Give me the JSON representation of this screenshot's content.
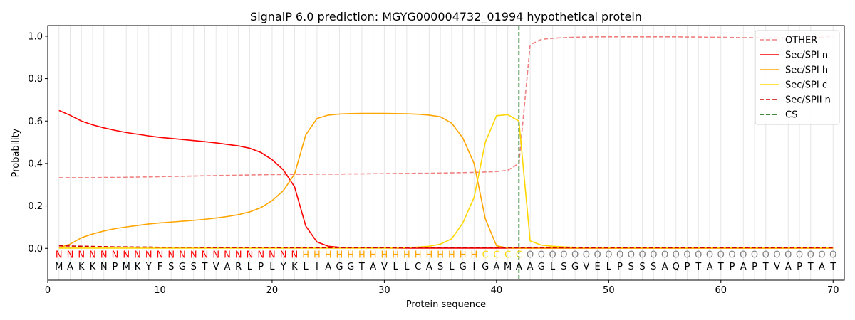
{
  "chart_data": {
    "type": "line",
    "title": "SignalP 6.0 prediction: MGYG000004732_01994 hypothetical protein",
    "xlabel": "Protein sequence",
    "ylabel": "Probability",
    "xlim": [
      0,
      71
    ],
    "ylim": [
      -0.15,
      1.05
    ],
    "xticks": [
      0,
      10,
      20,
      30,
      40,
      50,
      60,
      70
    ],
    "yticks": [
      "0.0",
      "0.2",
      "0.4",
      "0.6",
      "0.8",
      "1.0"
    ],
    "yticks_values": [
      0.0,
      0.2,
      0.4,
      0.6,
      0.8,
      1.0
    ],
    "grid": "vertical lines at each residue",
    "legend_position": "top-right",
    "sequence": [
      "M",
      "A",
      "K",
      "K",
      "N",
      "P",
      "M",
      "K",
      "Y",
      "F",
      "S",
      "G",
      "S",
      "T",
      "V",
      "A",
      "R",
      "L",
      "P",
      "L",
      "Y",
      "K",
      "L",
      "I",
      "A",
      "G",
      "G",
      "T",
      "A",
      "V",
      "L",
      "L",
      "C",
      "A",
      "S",
      "L",
      "G",
      "I",
      "G",
      "A",
      "M",
      "A",
      "A",
      "G",
      "L",
      "S",
      "G",
      "V",
      "E",
      "L",
      "P",
      "S",
      "S",
      "S",
      "A",
      "Q",
      "P",
      "T",
      "A",
      "T",
      "P",
      "A",
      "P",
      "T",
      "V",
      "A",
      "P",
      "T",
      "A",
      "T"
    ],
    "labels": [
      "N",
      "N",
      "N",
      "N",
      "N",
      "N",
      "N",
      "N",
      "N",
      "N",
      "N",
      "N",
      "N",
      "N",
      "N",
      "N",
      "N",
      "N",
      "N",
      "N",
      "N",
      "N",
      "H",
      "H",
      "H",
      "H",
      "H",
      "H",
      "H",
      "H",
      "H",
      "H",
      "H",
      "H",
      "H",
      "H",
      "H",
      "H",
      "C",
      "C",
      "C",
      "C",
      "O",
      "O",
      "O",
      "O",
      "O",
      "O",
      "O",
      "O",
      "O",
      "O",
      "O",
      "O",
      "O",
      "O",
      "O",
      "O",
      "O",
      "O",
      "O",
      "O",
      "O",
      "O",
      "O",
      "O",
      "O",
      "O",
      "O",
      "O"
    ],
    "label_colors": {
      "N": "#ff0000",
      "H": "#ffa500",
      "C": "#ffd700",
      "O": "#808080"
    },
    "cs_position": 42,
    "series": [
      {
        "name": "OTHER",
        "color": "#f08080",
        "dash": "dashed",
        "values": [
          0.333,
          0.333,
          0.333,
          0.333,
          0.334,
          0.334,
          0.335,
          0.336,
          0.337,
          0.338,
          0.339,
          0.34,
          0.341,
          0.342,
          0.343,
          0.344,
          0.345,
          0.346,
          0.347,
          0.348,
          0.348,
          0.349,
          0.349,
          0.35,
          0.35,
          0.35,
          0.351,
          0.351,
          0.352,
          0.352,
          0.353,
          0.353,
          0.354,
          0.354,
          0.355,
          0.356,
          0.357,
          0.358,
          0.36,
          0.362,
          0.368,
          0.4,
          0.96,
          0.985,
          0.99,
          0.993,
          0.995,
          0.996,
          0.997,
          0.997,
          0.997,
          0.997,
          0.997,
          0.997,
          0.997,
          0.997,
          0.996,
          0.996,
          0.995,
          0.995,
          0.994,
          0.993,
          0.993,
          0.992,
          0.992,
          0.992,
          0.992,
          0.993,
          0.995,
          1.0
        ]
      },
      {
        "name": "Sec/SPI n",
        "color": "#ff0000",
        "dash": "solid",
        "values": [
          0.65,
          0.627,
          0.6,
          0.582,
          0.568,
          0.556,
          0.546,
          0.538,
          0.53,
          0.523,
          0.518,
          0.513,
          0.508,
          0.503,
          0.497,
          0.49,
          0.483,
          0.472,
          0.452,
          0.418,
          0.37,
          0.29,
          0.105,
          0.03,
          0.01,
          0.005,
          0.003,
          0.002,
          0.002,
          0.002,
          0.001,
          0.001,
          0.001,
          0.001,
          0.001,
          0.001,
          0.001,
          0.001,
          0.001,
          0.001,
          0.001,
          0.001,
          0.001,
          0.001,
          0.001,
          0.001,
          0.001,
          0.001,
          0.001,
          0.001,
          0.001,
          0.001,
          0.001,
          0.001,
          0.001,
          0.001,
          0.001,
          0.001,
          0.001,
          0.001,
          0.001,
          0.001,
          0.001,
          0.001,
          0.001,
          0.001,
          0.001,
          0.001,
          0.001,
          0.001
        ]
      },
      {
        "name": "Sec/SPI h",
        "color": "#ffa500",
        "dash": "solid",
        "values": [
          0.002,
          0.02,
          0.05,
          0.068,
          0.082,
          0.093,
          0.101,
          0.108,
          0.115,
          0.12,
          0.124,
          0.128,
          0.132,
          0.137,
          0.143,
          0.15,
          0.159,
          0.172,
          0.192,
          0.225,
          0.272,
          0.35,
          0.535,
          0.612,
          0.628,
          0.633,
          0.635,
          0.636,
          0.636,
          0.636,
          0.635,
          0.634,
          0.632,
          0.628,
          0.62,
          0.59,
          0.52,
          0.4,
          0.14,
          0.012,
          0.002,
          0.001,
          0.001,
          0.001,
          0.001,
          0.001,
          0.001,
          0.001,
          0.001,
          0.001,
          0.001,
          0.001,
          0.001,
          0.001,
          0.001,
          0.001,
          0.001,
          0.001,
          0.001,
          0.001,
          0.001,
          0.001,
          0.001,
          0.001,
          0.001,
          0.001,
          0.001,
          0.001,
          0.001,
          0.001
        ]
      },
      {
        "name": "Sec/SPI c",
        "color": "#ffd700",
        "dash": "solid",
        "values": [
          0.001,
          0.001,
          0.001,
          0.001,
          0.001,
          0.001,
          0.001,
          0.001,
          0.001,
          0.001,
          0.001,
          0.001,
          0.001,
          0.001,
          0.001,
          0.001,
          0.001,
          0.001,
          0.001,
          0.001,
          0.001,
          0.001,
          0.001,
          0.001,
          0.001,
          0.001,
          0.001,
          0.001,
          0.001,
          0.001,
          0.002,
          0.003,
          0.006,
          0.01,
          0.02,
          0.045,
          0.12,
          0.24,
          0.5,
          0.625,
          0.63,
          0.6,
          0.035,
          0.015,
          0.01,
          0.007,
          0.005,
          0.004,
          0.003,
          0.003,
          0.002,
          0.002,
          0.002,
          0.002,
          0.002,
          0.002,
          0.002,
          0.002,
          0.002,
          0.002,
          0.002,
          0.002,
          0.002,
          0.002,
          0.002,
          0.002,
          0.002,
          0.002,
          0.002,
          0.002
        ]
      },
      {
        "name": "Sec/SPII n",
        "color": "#cc0000",
        "dash": "dashed",
        "values": [
          0.012,
          0.011,
          0.01,
          0.009,
          0.008,
          0.007,
          0.007,
          0.006,
          0.006,
          0.005,
          0.005,
          0.005,
          0.005,
          0.004,
          0.004,
          0.004,
          0.004,
          0.004,
          0.004,
          0.004,
          0.003,
          0.003,
          0.003,
          0.003,
          0.003,
          0.003,
          0.003,
          0.003,
          0.003,
          0.003,
          0.003,
          0.003,
          0.003,
          0.003,
          0.003,
          0.003,
          0.003,
          0.003,
          0.003,
          0.003,
          0.003,
          0.003,
          0.003,
          0.003,
          0.003,
          0.003,
          0.003,
          0.003,
          0.003,
          0.003,
          0.003,
          0.003,
          0.003,
          0.003,
          0.003,
          0.003,
          0.003,
          0.003,
          0.003,
          0.003,
          0.003,
          0.003,
          0.003,
          0.003,
          0.003,
          0.003,
          0.003,
          0.003,
          0.003,
          0.003
        ]
      }
    ],
    "legend": [
      {
        "name": "OTHER",
        "color": "#f08080",
        "dash": "dashed"
      },
      {
        "name": "Sec/SPI n",
        "color": "#ff0000",
        "dash": "solid"
      },
      {
        "name": "Sec/SPI h",
        "color": "#ffa500",
        "dash": "solid"
      },
      {
        "name": "Sec/SPI c",
        "color": "#ffd700",
        "dash": "solid"
      },
      {
        "name": "Sec/SPII n",
        "color": "#cc0000",
        "dash": "dashed"
      },
      {
        "name": "CS",
        "color": "#006400",
        "dash": "dashed"
      }
    ]
  }
}
